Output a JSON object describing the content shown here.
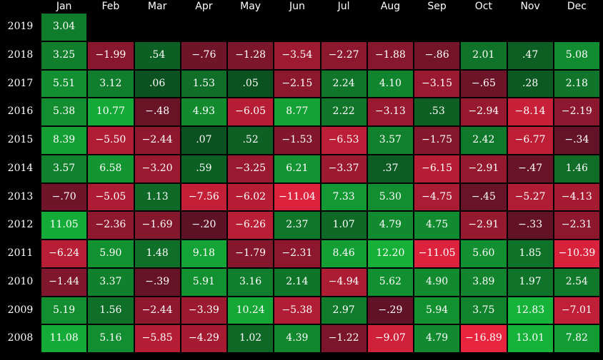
{
  "chart_data": {
    "type": "heatmap",
    "x": [
      "Jan",
      "Feb",
      "Mar",
      "Apr",
      "May",
      "Jun",
      "Jul",
      "Aug",
      "Sep",
      "Oct",
      "Nov",
      "Dec"
    ],
    "y": [
      "2019",
      "2018",
      "2017",
      "2016",
      "2015",
      "2014",
      "2013",
      "2012",
      "2011",
      "2010",
      "2009",
      "2008"
    ],
    "values": [
      [
        "3.04",
        null,
        null,
        null,
        null,
        null,
        null,
        null,
        null,
        null,
        null,
        null
      ],
      [
        "3.25",
        "-1.99",
        ".54",
        "-.76",
        "-1.28",
        "-3.54",
        "-2.27",
        "-1.88",
        "-.86",
        "2.01",
        ".47",
        "5.08"
      ],
      [
        "5.51",
        "3.12",
        ".06",
        "1.53",
        ".05",
        "-2.15",
        "2.24",
        "4.10",
        "-3.15",
        "-.65",
        ".28",
        "2.18"
      ],
      [
        "5.38",
        "10.77",
        "-.48",
        "4.93",
        "-6.05",
        "8.77",
        "2.22",
        "-3.13",
        ".53",
        "-2.94",
        "-8.14",
        "-2.19"
      ],
      [
        "8.39",
        "-5.50",
        "-2.44",
        ".07",
        ".52",
        "-1.53",
        "-6.53",
        "3.57",
        "-1.75",
        "2.42",
        "-6.77",
        "-.34"
      ],
      [
        "3.57",
        "6.58",
        "-3.20",
        ".59",
        "-3.25",
        "6.21",
        "-3.37",
        ".37",
        "-6.15",
        "-2.91",
        "-.47",
        "1.46"
      ],
      [
        "-.70",
        "-5.05",
        "1.13",
        "-7.56",
        "-6.02",
        "-11.04",
        "7.33",
        "5.30",
        "-4.75",
        "-.45",
        "-5.27",
        "-4.13"
      ],
      [
        "11.05",
        "-2.36",
        "-1.69",
        "-.20",
        "-6.26",
        "2.37",
        "1.07",
        "4.79",
        "4.75",
        "-2.91",
        "-.33",
        "-2.31"
      ],
      [
        "-6.24",
        "5.90",
        "1.48",
        "9.18",
        "-1.79",
        "-2.31",
        "8.46",
        "12.20",
        "-11.05",
        "5.60",
        "1.85",
        "-10.39"
      ],
      [
        "-1.44",
        "3.37",
        "-.39",
        "5.91",
        "3.16",
        "2.14",
        "-4.94",
        "5.62",
        "4.90",
        "3.89",
        "1.97",
        "2.54"
      ],
      [
        "5.19",
        "1.56",
        "-2.44",
        "-3.39",
        "10.24",
        "-5.38",
        "2.97",
        "-.29",
        "5.94",
        "3.75",
        "12.83",
        "-7.01"
      ],
      [
        "11.08",
        "5.16",
        "-5.85",
        "-4.29",
        "1.02",
        "4.39",
        "-1.22",
        "-9.07",
        "4.79",
        "-16.89",
        "13.01",
        "7.82"
      ]
    ],
    "colors": {
      "positive_low": "#0b4a1e",
      "positive_high": "#16b33a",
      "negative_low": "#4a0f22",
      "negative_high": "#e8243e",
      "background": "#000000",
      "text": "#ffffff"
    }
  }
}
